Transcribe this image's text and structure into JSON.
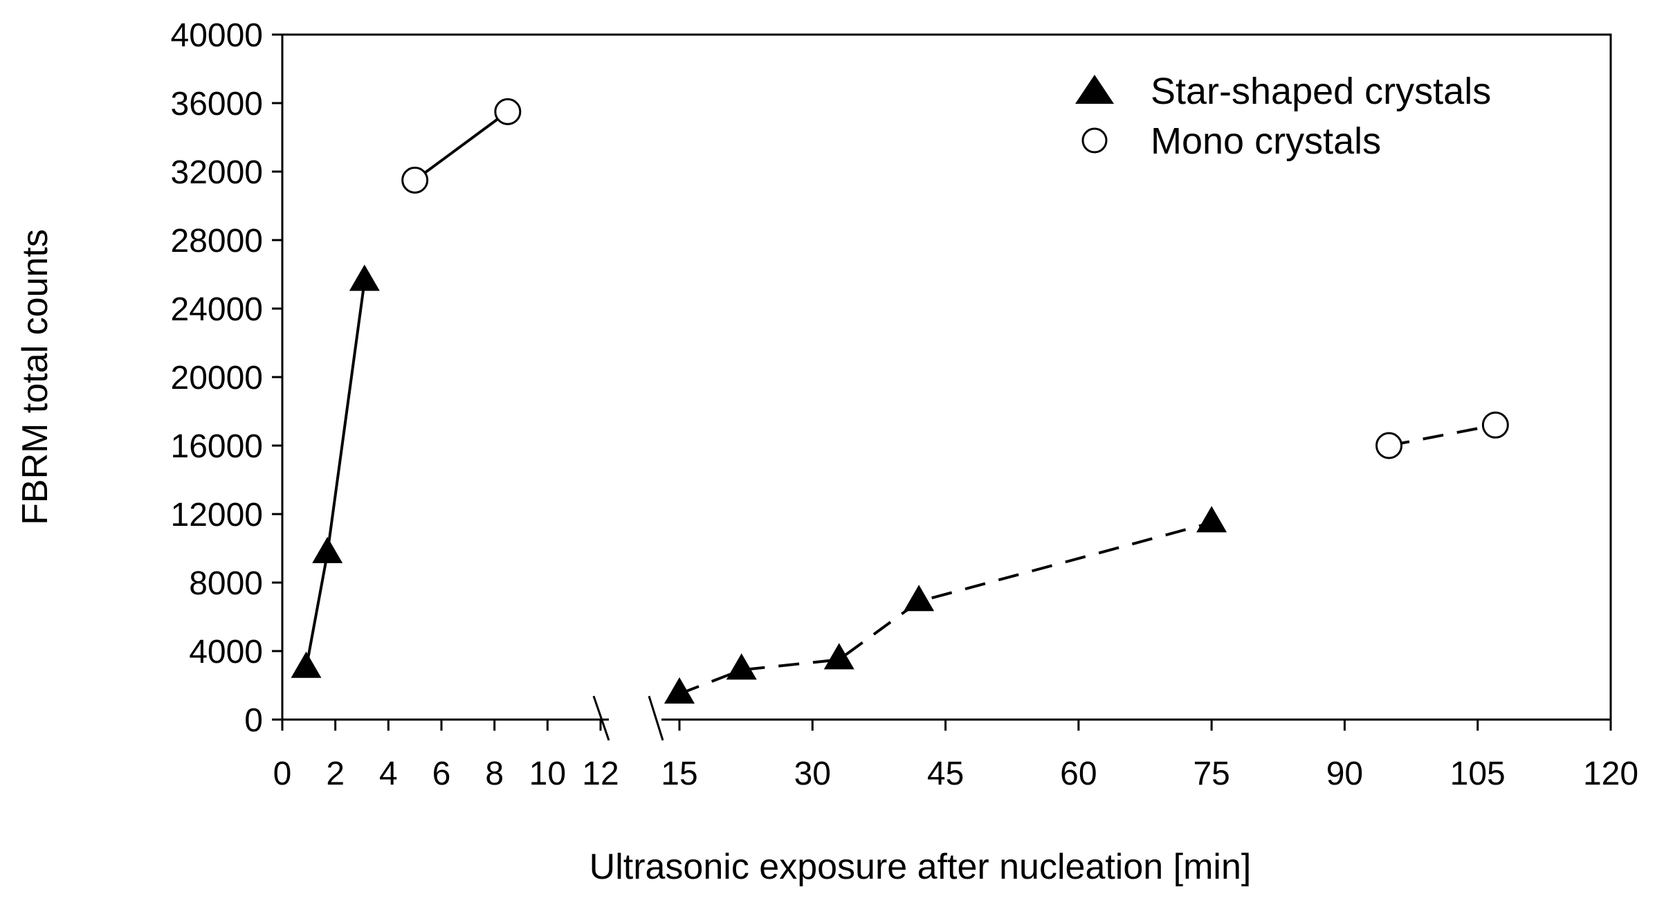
{
  "chart_data": {
    "type": "scatter",
    "title": "",
    "xlabel": "Ultrasonic exposure after nucleation [min]",
    "ylabel": "FBRM total counts",
    "ylim": [
      0,
      40000
    ],
    "yticks": [
      0,
      4000,
      8000,
      12000,
      16000,
      20000,
      24000,
      28000,
      32000,
      36000,
      40000
    ],
    "x_axis_broken": true,
    "x_segments": [
      {
        "xlim": [
          0,
          12
        ],
        "ticks": [
          0,
          2,
          4,
          6,
          8,
          10,
          12
        ]
      },
      {
        "xlim": [
          15,
          120
        ],
        "ticks": [
          15,
          30,
          45,
          60,
          75,
          90,
          105,
          120
        ]
      }
    ],
    "grid": false,
    "legend_position": "top-right",
    "series": [
      {
        "name": "Star-shaped crystals",
        "marker": "filled-triangle",
        "groups": [
          {
            "line": "solid",
            "points": [
              [
                0.9,
                3000
              ],
              [
                1.7,
                9700
              ],
              [
                3.1,
                25600
              ]
            ]
          },
          {
            "line": "dashed",
            "points": [
              [
                15,
                1500
              ],
              [
                22,
                2900
              ],
              [
                33,
                3500
              ],
              [
                42,
                6900
              ],
              [
                75,
                11500
              ]
            ]
          }
        ]
      },
      {
        "name": "Mono crystals",
        "marker": "open-circle",
        "groups": [
          {
            "line": "solid",
            "points": [
              [
                5,
                31500
              ],
              [
                8.5,
                35500
              ]
            ]
          },
          {
            "line": "dashed",
            "points": [
              [
                95,
                16000
              ],
              [
                107,
                17200
              ]
            ]
          }
        ]
      }
    ],
    "colors": {
      "marker": "#000000",
      "fill_open": "#ffffff",
      "axis": "#000000"
    }
  }
}
